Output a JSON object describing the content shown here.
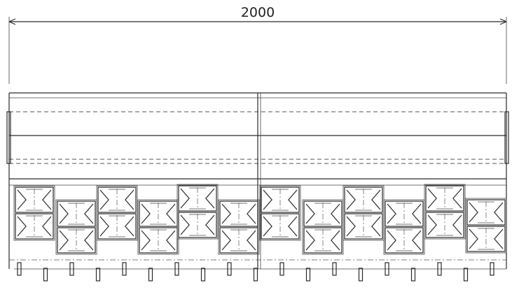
{
  "drawing": {
    "overall_dimension": "2000",
    "ink_color": "#2a2a2a",
    "paper_color": "#ffffff"
  }
}
